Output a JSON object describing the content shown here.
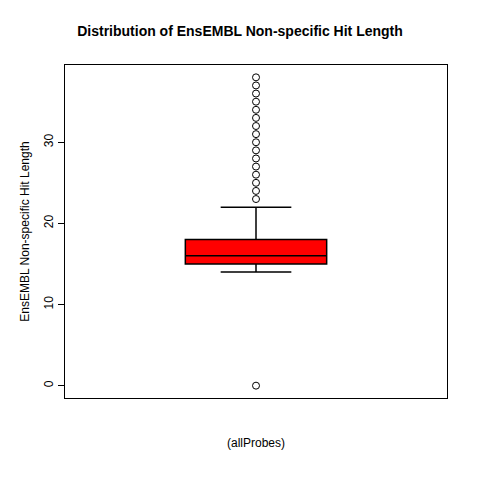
{
  "chart_data": {
    "type": "box",
    "title": "Distribution of EnsEMBL Non-specific Hit Length",
    "xlabel": "(allProbes)",
    "ylabel": "EnsEMBL Non-specific Hit Length",
    "lower_whisker": 14,
    "q1": 15,
    "median": 16,
    "q3": 18,
    "upper_whisker": 22,
    "outliers": [
      0,
      23,
      24,
      25,
      26,
      27,
      28,
      29,
      30,
      31,
      32,
      33,
      34,
      35,
      36,
      37,
      38
    ],
    "color": "#ff0000",
    "marker": "open circle",
    "ylim": [
      -1.52,
      39.52
    ],
    "yticks": [
      0,
      10,
      20,
      30
    ],
    "grid": false,
    "tick_labels": "y"
  }
}
